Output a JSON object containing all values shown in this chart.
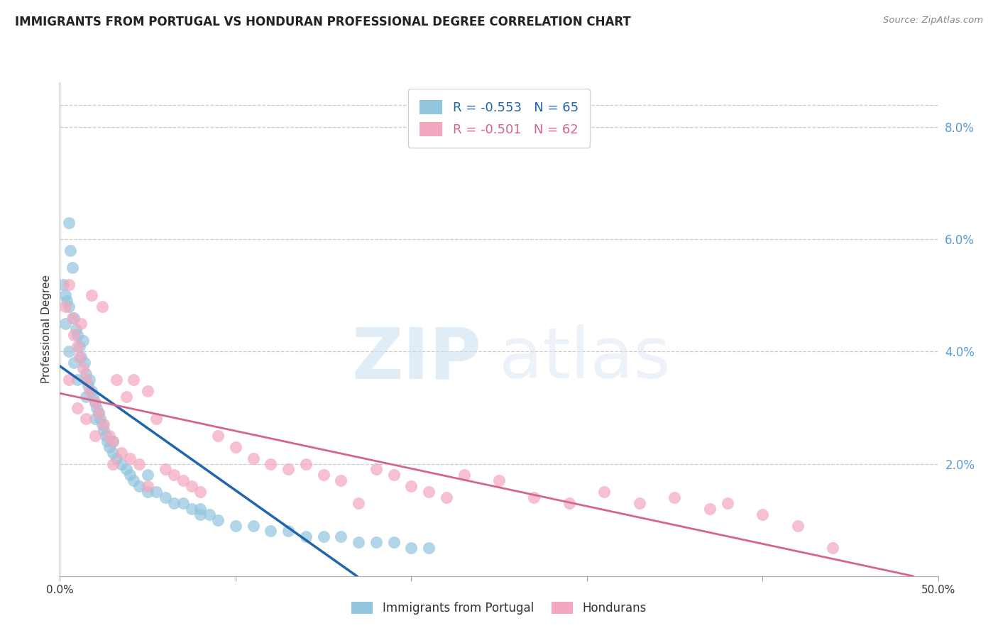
{
  "title": "IMMIGRANTS FROM PORTUGAL VS HONDURAN PROFESSIONAL DEGREE CORRELATION CHART",
  "source": "Source: ZipAtlas.com",
  "ylabel": "Professional Degree",
  "legend_label1": "Immigrants from Portugal",
  "legend_label2": "Hondurans",
  "r1": -0.553,
  "n1": 65,
  "r2": -0.501,
  "n2": 62,
  "color1": "#92c5de",
  "color2": "#f4a6be",
  "line_color1": "#2166ac",
  "line_color2": "#d6658a",
  "xmin": 0.0,
  "xmax": 50.0,
  "ymin": 0.0,
  "ymax": 8.8,
  "yticks_right": [
    2.0,
    4.0,
    6.0,
    8.0
  ],
  "watermark_zip": "ZIP",
  "watermark_atlas": "atlas",
  "title_fontsize": 12,
  "axis_label_fontsize": 11,
  "tick_fontsize": 11,
  "scatter1_x": [
    0.2,
    0.3,
    0.4,
    0.5,
    0.5,
    0.6,
    0.7,
    0.8,
    0.9,
    1.0,
    1.1,
    1.2,
    1.3,
    1.4,
    1.5,
    1.6,
    1.7,
    1.8,
    1.9,
    2.0,
    2.1,
    2.2,
    2.3,
    2.4,
    2.5,
    2.6,
    2.7,
    2.8,
    3.0,
    3.2,
    3.5,
    3.8,
    4.0,
    4.2,
    4.5,
    5.0,
    5.5,
    6.0,
    6.5,
    7.0,
    7.5,
    8.0,
    8.5,
    9.0,
    10.0,
    11.0,
    12.0,
    13.0,
    14.0,
    15.0,
    16.0,
    17.0,
    18.0,
    19.0,
    20.0,
    21.0,
    0.3,
    0.5,
    0.8,
    1.0,
    1.5,
    2.0,
    3.0,
    5.0,
    8.0
  ],
  "scatter1_y": [
    5.2,
    5.0,
    4.9,
    6.3,
    4.8,
    5.8,
    5.5,
    4.6,
    4.4,
    4.3,
    4.1,
    3.9,
    4.2,
    3.8,
    3.6,
    3.4,
    3.5,
    3.3,
    3.2,
    3.1,
    3.0,
    2.9,
    2.8,
    2.7,
    2.6,
    2.5,
    2.4,
    2.3,
    2.2,
    2.1,
    2.0,
    1.9,
    1.8,
    1.7,
    1.6,
    1.5,
    1.5,
    1.4,
    1.3,
    1.3,
    1.2,
    1.1,
    1.1,
    1.0,
    0.9,
    0.9,
    0.8,
    0.8,
    0.7,
    0.7,
    0.7,
    0.6,
    0.6,
    0.6,
    0.5,
    0.5,
    4.5,
    4.0,
    3.8,
    3.5,
    3.2,
    2.8,
    2.4,
    1.8,
    1.2
  ],
  "scatter2_x": [
    0.3,
    0.5,
    0.7,
    0.8,
    1.0,
    1.1,
    1.2,
    1.3,
    1.5,
    1.7,
    1.8,
    2.0,
    2.2,
    2.4,
    2.5,
    2.8,
    3.0,
    3.2,
    3.5,
    3.8,
    4.0,
    4.2,
    4.5,
    5.0,
    5.5,
    6.0,
    6.5,
    7.0,
    7.5,
    8.0,
    9.0,
    10.0,
    11.0,
    12.0,
    13.0,
    14.0,
    15.0,
    16.0,
    17.0,
    18.0,
    19.0,
    20.0,
    21.0,
    22.0,
    23.0,
    25.0,
    27.0,
    29.0,
    31.0,
    33.0,
    35.0,
    37.0,
    38.0,
    40.0,
    42.0,
    44.0,
    0.5,
    1.0,
    1.5,
    2.0,
    3.0,
    5.0
  ],
  "scatter2_y": [
    4.8,
    5.2,
    4.6,
    4.3,
    4.1,
    3.9,
    4.5,
    3.7,
    3.5,
    3.3,
    5.0,
    3.1,
    2.9,
    4.8,
    2.7,
    2.5,
    2.4,
    3.5,
    2.2,
    3.2,
    2.1,
    3.5,
    2.0,
    3.3,
    2.8,
    1.9,
    1.8,
    1.7,
    1.6,
    1.5,
    2.5,
    2.3,
    2.1,
    2.0,
    1.9,
    2.0,
    1.8,
    1.7,
    1.3,
    1.9,
    1.8,
    1.6,
    1.5,
    1.4,
    1.8,
    1.7,
    1.4,
    1.3,
    1.5,
    1.3,
    1.4,
    1.2,
    1.3,
    1.1,
    0.9,
    0.5,
    3.5,
    3.0,
    2.8,
    2.5,
    2.0,
    1.6
  ]
}
